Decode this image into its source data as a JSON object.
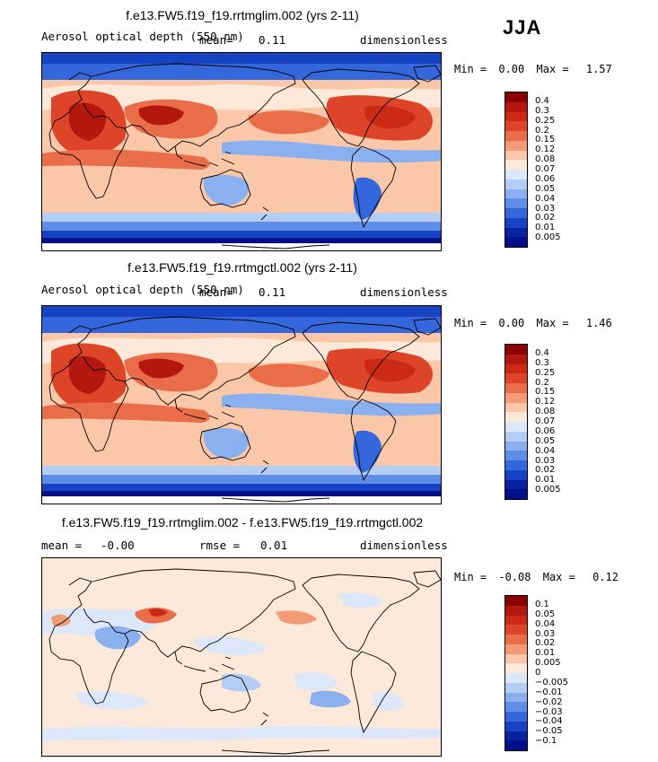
{
  "season": "JJA",
  "panels": [
    {
      "title": "f.e13.FW5.f19_f19.rrtmglim.002 (yrs 2-11)",
      "variable": "Aerosol optical depth (550 nm)",
      "mean_label": "mean=",
      "mean": "0.11",
      "units": "dimensionless",
      "min_label": "Min =",
      "min": "0.00",
      "max_label": "Max =",
      "max": "1.57",
      "colorbar_labels": [
        "0.4",
        "0.3",
        "0.25",
        "0.2",
        "0.15",
        "0.12",
        "0.08",
        "0.07",
        "0.06",
        "0.05",
        "0.04",
        "0.03",
        "0.02",
        "0.01",
        "0.005"
      ],
      "colorbar_colors": [
        "#8b0000",
        "#b3170e",
        "#cc2a14",
        "#de4528",
        "#ea6d4a",
        "#f39b76",
        "#fac7a8",
        "#fde9da",
        "#dce8fa",
        "#b4cdf5",
        "#8bb0ef",
        "#5f8ee8",
        "#3467dc",
        "#1643c4",
        "#0a22a0",
        "#00108a"
      ]
    },
    {
      "title": "f.e13.FW5.f19_f19.rrtmgctl.002 (yrs 2-11)",
      "variable": "Aerosol optical depth (550 nm)",
      "mean_label": "mean=",
      "mean": "0.11",
      "units": "dimensionless",
      "min_label": "Min =",
      "min": "0.00",
      "max_label": "Max =",
      "max": "1.46",
      "colorbar_labels": [
        "0.4",
        "0.3",
        "0.25",
        "0.2",
        "0.15",
        "0.12",
        "0.08",
        "0.07",
        "0.06",
        "0.05",
        "0.04",
        "0.03",
        "0.02",
        "0.01",
        "0.005"
      ],
      "colorbar_colors": [
        "#8b0000",
        "#b3170e",
        "#cc2a14",
        "#de4528",
        "#ea6d4a",
        "#f39b76",
        "#fac7a8",
        "#fde9da",
        "#dce8fa",
        "#b4cdf5",
        "#8bb0ef",
        "#5f8ee8",
        "#3467dc",
        "#1643c4",
        "#0a22a0",
        "#00108a"
      ]
    },
    {
      "title": "f.e13.FW5.f19_f19.rrtmglim.002 - f.e13.FW5.f19_f19.rrtmgctl.002",
      "mean_label": "mean =",
      "mean": "-0.00",
      "rmse_label": "rmse =",
      "rmse": "0.01",
      "units": "dimensionless",
      "min_label": "Min =",
      "min": "-0.08",
      "max_label": "Max =",
      "max": "0.12",
      "colorbar_labels": [
        "0.1",
        "0.05",
        "0.04",
        "0.03",
        "0.02",
        "0.01",
        "0.005",
        "0",
        "-0.005",
        "-0.01",
        "-0.02",
        "-0.03",
        "-0.04",
        "-0.05",
        "-0.1"
      ],
      "colorbar_colors": [
        "#8b0000",
        "#b3170e",
        "#cc2a14",
        "#de4528",
        "#ea6d4a",
        "#f39b76",
        "#fac7a8",
        "#fde9da",
        "#dce8fa",
        "#b4cdf5",
        "#8bb0ef",
        "#5f8ee8",
        "#3467dc",
        "#1643c4",
        "#0a22a0",
        "#00108a"
      ]
    }
  ]
}
